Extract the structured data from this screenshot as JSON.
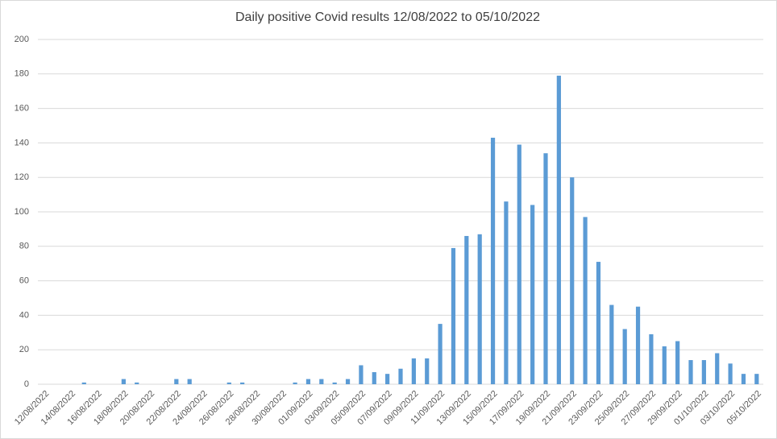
{
  "chart_data": {
    "type": "bar",
    "title": "Daily positive Covid results 12/08/2022 to 05/10/2022",
    "categories": [
      "12/08/2022",
      null,
      "14/08/2022",
      null,
      "16/08/2022",
      null,
      "18/08/2022",
      null,
      "20/08/2022",
      null,
      "22/08/2022",
      null,
      "24/08/2022",
      null,
      "26/08/2022",
      null,
      "28/08/2022",
      null,
      "30/08/2022",
      null,
      "01/09/2022",
      null,
      "03/09/2022",
      null,
      "05/09/2022",
      null,
      "07/09/2022",
      null,
      "09/09/2022",
      null,
      "11/09/2022",
      null,
      "13/09/2022",
      null,
      "15/09/2022",
      null,
      "17/09/2022",
      null,
      "19/09/2022",
      null,
      "21/09/2022",
      null,
      "23/09/2022",
      null,
      "25/09/2022",
      null,
      "27/09/2022",
      null,
      "29/09/2022",
      null,
      "01/10/2022",
      null,
      "03/10/2022",
      null,
      "05/10/2022"
    ],
    "values": [
      0,
      0,
      0,
      1,
      0,
      0,
      3,
      1,
      0,
      0,
      3,
      3,
      0,
      0,
      1,
      1,
      0,
      0,
      0,
      1,
      3,
      3,
      1,
      3,
      11,
      7,
      6,
      9,
      15,
      15,
      35,
      79,
      86,
      87,
      143,
      106,
      139,
      104,
      134,
      179,
      120,
      97,
      71,
      46,
      32,
      45,
      29,
      22,
      25,
      14,
      14,
      18,
      12,
      6,
      6
    ],
    "color": "#5b9bd5",
    "ylim": [
      0,
      200
    ],
    "yticks": [
      0,
      20,
      40,
      60,
      80,
      100,
      120,
      140,
      160,
      180,
      200
    ],
    "grid": true
  }
}
